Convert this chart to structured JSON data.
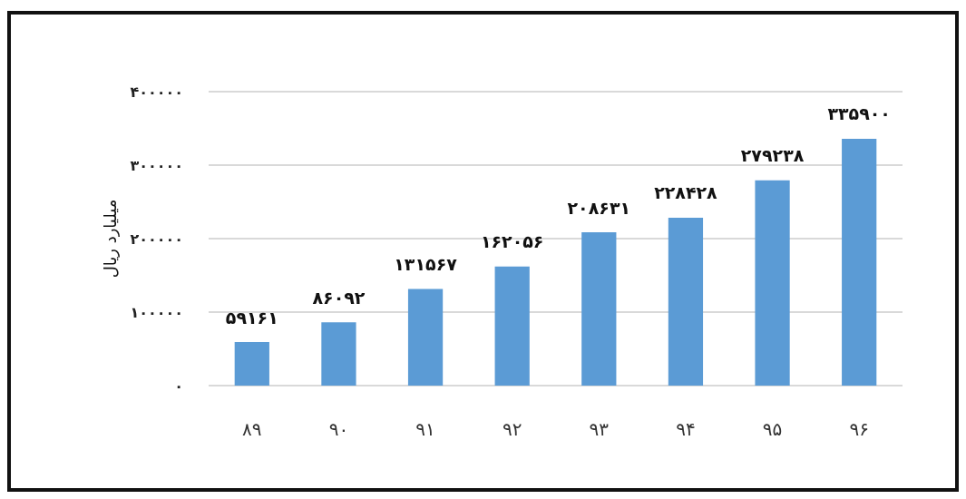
{
  "chart_data": {
    "type": "bar",
    "ylabel": "میلیارد ریال",
    "categories": [
      "۸۹",
      "۹۰",
      "۹۱",
      "۹۲",
      "۹۳",
      "۹۴",
      "۹۵",
      "۹۶"
    ],
    "values": [
      59161,
      86092,
      131567,
      162056,
      208631,
      228428,
      279238,
      335900
    ],
    "value_labels": [
      "۵۹۱۶۱",
      "۸۶۰۹۲",
      "۱۳۱۵۶۷",
      "۱۶۲۰۵۶",
      "۲۰۸۶۳۱",
      "۲۲۸۴۲۸",
      "۲۷۹۲۳۸",
      "۳۳۵۹۰۰"
    ],
    "color": "#5b9bd5",
    "ylim": [
      0,
      400000
    ],
    "yticks": [
      {
        "value": 0,
        "label": "۰"
      },
      {
        "value": 100000,
        "label": "۱۰۰۰۰۰"
      },
      {
        "value": 200000,
        "label": "۲۰۰۰۰۰"
      },
      {
        "value": 300000,
        "label": "۳۰۰۰۰۰"
      },
      {
        "value": 400000,
        "label": "۴۰۰۰۰۰"
      }
    ],
    "grid": "y"
  }
}
